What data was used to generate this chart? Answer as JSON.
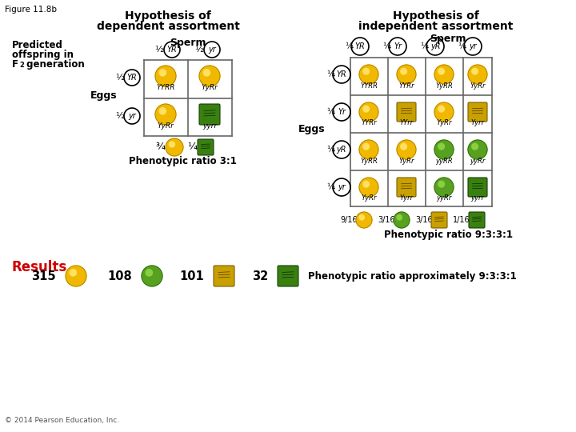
{
  "figure_label": "Figure 11.8b",
  "left_title1": "Hypothesis of",
  "left_title2": "dependent assortment",
  "right_title1": "Hypothesis of",
  "right_title2": "independent assortment",
  "copyright": "© 2014 Pearson Education, Inc.",
  "dep_sperm_labels": [
    "YR",
    "yr"
  ],
  "dep_egg_labels": [
    "YR",
    "yr"
  ],
  "dep_grid_genotypes": [
    [
      "YYRR",
      "YyRr"
    ],
    [
      "YyRr",
      "yyrr"
    ]
  ],
  "dep_grid_types": [
    [
      "yellow_sphere",
      "yellow_sphere"
    ],
    [
      "yellow_sphere",
      "green_cube"
    ]
  ],
  "dep_phenotype_text": "Phenotypic ratio 3:1",
  "indep_sperm_labels": [
    "YR",
    "Yr",
    "yR",
    "yr"
  ],
  "indep_egg_labels": [
    "YR",
    "Yr",
    "yR",
    "yr"
  ],
  "indep_grid_genotypes": [
    [
      "YYRR",
      "YYRr",
      "YyRR",
      "YyRr"
    ],
    [
      "YYRr",
      "YYrr",
      "YyRr",
      "Yyrr"
    ],
    [
      "YyRR",
      "YyRr",
      "yyRR",
      "yyRr"
    ],
    [
      "YyRr",
      "Yyrr",
      "yyRr",
      "yyrr"
    ]
  ],
  "indep_grid_types": [
    [
      "yellow_sphere",
      "yellow_sphere",
      "yellow_sphere",
      "yellow_sphere"
    ],
    [
      "yellow_sphere",
      "yellow_cube",
      "yellow_sphere",
      "yellow_cube"
    ],
    [
      "yellow_sphere",
      "yellow_sphere",
      "green_sphere",
      "green_sphere"
    ],
    [
      "yellow_sphere",
      "yellow_cube",
      "green_sphere",
      "green_cube"
    ]
  ],
  "indep_phenotype_text": "Phenotypic ratio 9:3:3:1",
  "indep_ratio_fracs": [
    "9/16",
    "3/16",
    "3/16",
    "1/16"
  ],
  "indep_ratio_types": [
    "yellow_sphere",
    "green_sphere",
    "yellow_cube",
    "green_cube"
  ],
  "results_numbers": [
    "315",
    "108",
    "101",
    "32"
  ],
  "results_types": [
    "yellow_sphere",
    "green_sphere",
    "yellow_cube",
    "green_cube"
  ],
  "results_phenotype": "Phenotypic ratio approximately 9:3:3:1",
  "bg_color": "#ffffff",
  "title_color": "#000000",
  "results_color": "#cc0000",
  "grid_line_color": "#666666",
  "yellow_sphere_fill": "#f0b800",
  "yellow_sphere_hi": "#ffe060",
  "green_sphere_fill": "#58a020",
  "green_sphere_hi": "#88d040",
  "yellow_cube_fill": "#c8a000",
  "yellow_cube_edge": "#7a6000",
  "green_cube_fill": "#3a8010",
  "green_cube_edge": "#1a4008"
}
